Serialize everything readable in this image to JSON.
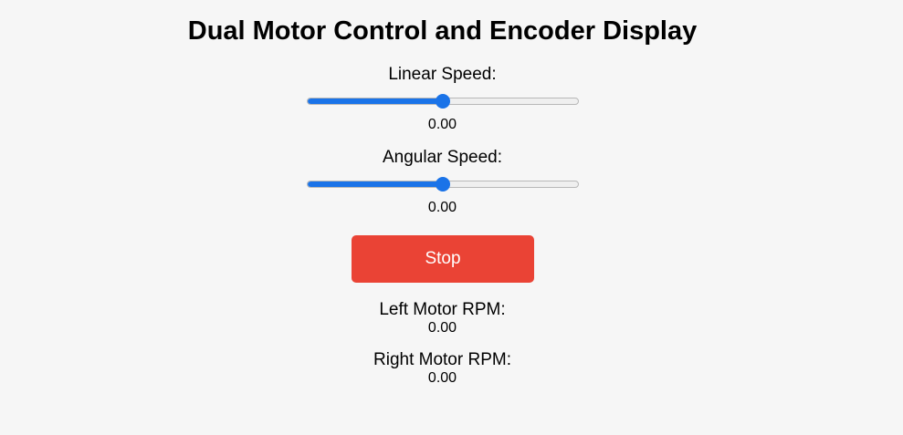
{
  "page": {
    "title": "Dual Motor Control and Encoder Display"
  },
  "controls": {
    "linear_speed": {
      "label": "Linear Speed:",
      "value_text": "0.00",
      "slider_fraction": 0.5
    },
    "angular_speed": {
      "label": "Angular Speed:",
      "value_text": "0.00",
      "slider_fraction": 0.5
    },
    "stop_button_label": "Stop"
  },
  "encoders": {
    "left_motor": {
      "label": "Left Motor RPM:",
      "value_text": "0.00"
    },
    "right_motor": {
      "label": "Right Motor RPM:",
      "value_text": "0.00"
    }
  },
  "colors": {
    "accent": "#1a73e8",
    "stop_button": "#ea4335",
    "background": "#f6f6f6"
  }
}
